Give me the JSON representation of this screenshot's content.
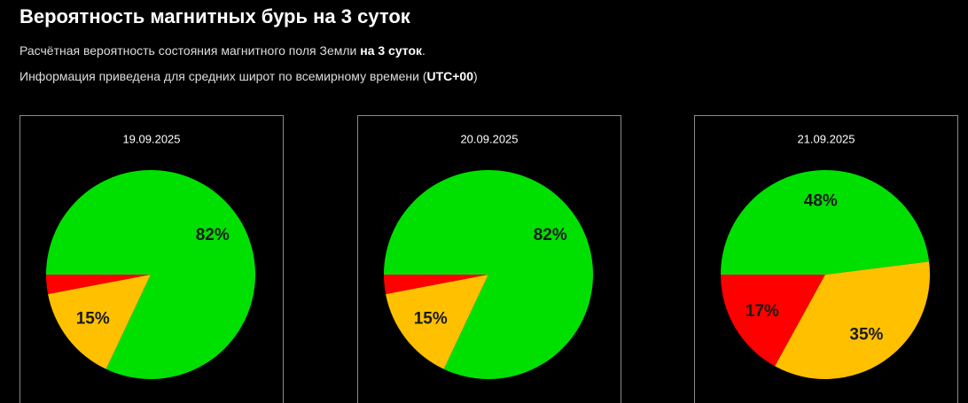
{
  "header": {
    "title": "Вероятность магнитных бурь на 3 суток",
    "line1": [
      "Расчётная вероятность состояния магнитного поля Земли ",
      "на 3 суток",
      "."
    ],
    "line2": [
      "Информация приведена для средних широт по всемирному времени (",
      "UTC+00",
      ")"
    ]
  },
  "chart_data": [
    {
      "type": "pie",
      "title": "19.09.2025",
      "values": [
        3,
        15,
        82
      ],
      "value_labels": [
        null,
        "15%",
        "82%"
      ],
      "colors": [
        "#ff0000",
        "#ffc000",
        "#00e000"
      ]
    },
    {
      "type": "pie",
      "title": "20.09.2025",
      "values": [
        3,
        15,
        82
      ],
      "value_labels": [
        null,
        "15%",
        "82%"
      ],
      "colors": [
        "#ff0000",
        "#ffc000",
        "#00e000"
      ]
    },
    {
      "type": "pie",
      "title": "21.09.2025",
      "values": [
        17,
        35,
        48
      ],
      "value_labels": [
        "17%",
        "35%",
        "48%"
      ],
      "colors": [
        "#ff0000",
        "#ffc000",
        "#00e000"
      ]
    }
  ]
}
